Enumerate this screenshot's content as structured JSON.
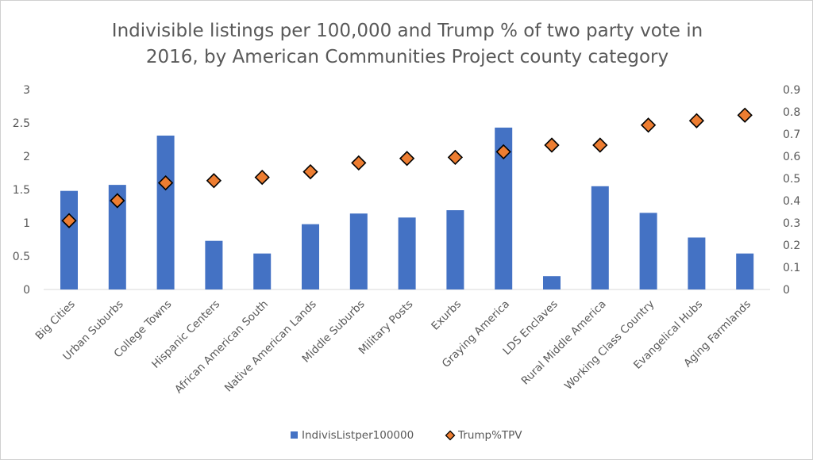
{
  "chart_data": {
    "type": "bar",
    "title_lines": [
      "Indivisible listings per 100,000 and Trump % of two party vote in",
      "2016, by American Communities Project county category"
    ],
    "categories": [
      "Big Cities",
      "Urban Suburbs",
      "College Towns",
      "Hispanic Centers",
      "African American South",
      "Native American Lands",
      "Middle Suburbs",
      "Military Posts",
      "Exurbs",
      "Graying America",
      "LDS Enclaves",
      "Rural Middle America",
      "Working Class Country",
      "Evangelical Hubs",
      "Aging Farmlands"
    ],
    "series": [
      {
        "name": "IndivisListper100000",
        "type": "bar",
        "axis": "left",
        "color": "#4472C4",
        "values": [
          1.48,
          1.57,
          2.31,
          0.73,
          0.54,
          0.98,
          1.14,
          1.08,
          1.19,
          2.43,
          0.2,
          1.55,
          1.15,
          0.78,
          0.54
        ]
      },
      {
        "name": "Trump%TPV",
        "type": "scatter",
        "marker": "diamond",
        "axis": "right",
        "color": "#ED7D31",
        "values": [
          0.31,
          0.4,
          0.48,
          0.49,
          0.505,
          0.53,
          0.57,
          0.59,
          0.595,
          0.62,
          0.65,
          0.65,
          0.74,
          0.76,
          0.785
        ]
      }
    ],
    "y_left": {
      "ylim": [
        0,
        3
      ],
      "ticks": [
        "0",
        "0.5",
        "1",
        "1.5",
        "2",
        "2.5",
        "3"
      ]
    },
    "y_right": {
      "ylim": [
        0,
        0.9
      ],
      "ticks": [
        "0",
        "0.1",
        "0.2",
        "0.3",
        "0.4",
        "0.5",
        "0.6",
        "0.7",
        "0.8",
        "0.9"
      ]
    },
    "grid": false,
    "legend_position": "bottom"
  }
}
